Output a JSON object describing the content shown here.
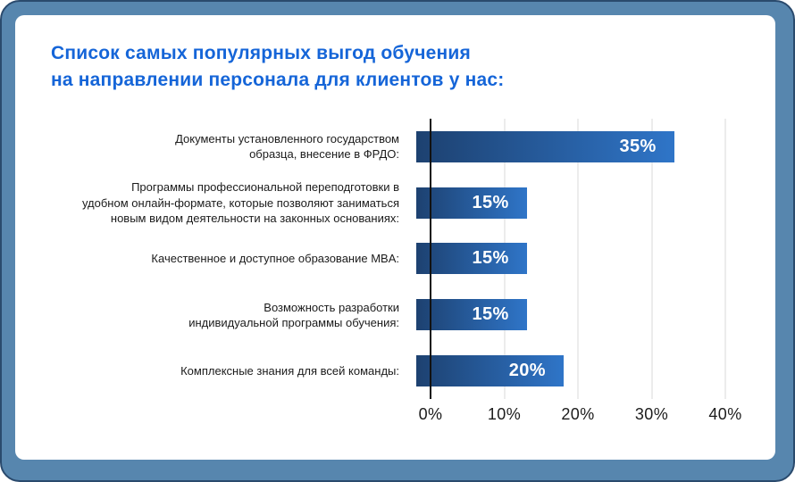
{
  "title": {
    "line1": "Список самых популярных выгод обучения",
    "line2": "на направлении персонала для клиентов у нас:"
  },
  "chart_data": {
    "type": "bar",
    "orientation": "horizontal",
    "title": "Список самых популярных выгод обучения на направлении персонала для клиентов у нас:",
    "categories": [
      "Документы установленного государством\nобразца, внесение в ФРДО:",
      "Программы профессиональной переподготовки в\nудобном онлайн-формате, которые позволяют заниматься\nновым видом деятельности на законных основаниях:",
      "Качественное и доступное образование MBA:",
      "Возможность разработки\nиндивидуальной программы обучения:",
      "Комплексные знания для всей команды:"
    ],
    "values": [
      35,
      15,
      15,
      15,
      20
    ],
    "value_labels": [
      "35%",
      "15%",
      "15%",
      "15%",
      "20%"
    ],
    "x_ticks": [
      "0%",
      "10%",
      "20%",
      "30%",
      "40%"
    ],
    "x_tick_values": [
      0,
      10,
      20,
      30,
      40
    ],
    "xlim": [
      0,
      40
    ],
    "xlabel": "",
    "ylabel": "",
    "grid": "vertical-light",
    "legend": "none",
    "value_label_position": "inside-right"
  },
  "colors": {
    "frame_bg": "#5786ae",
    "frame_border": "#2a4a6d",
    "card_bg": "#ffffff",
    "title_color": "#1565d8",
    "bar_start": "#1d4170",
    "bar_end": "#2f75c8",
    "axis_color": "#111111",
    "grid_color": "#ececec",
    "label_color": "#1b1b1b",
    "tick_color": "#1c1c1c",
    "value_color": "#ffffff"
  }
}
